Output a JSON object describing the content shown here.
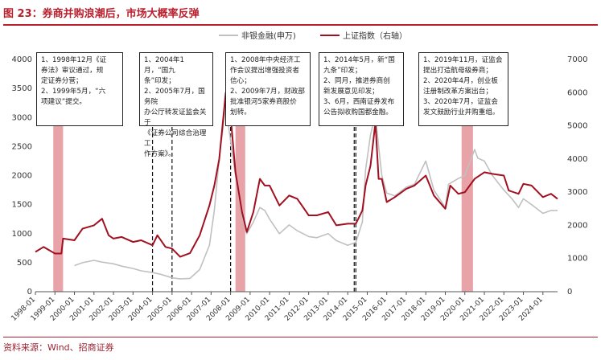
{
  "title": "图 23：券商并购浪潮后，市场大概率反弹",
  "source": "资料来源：Wind、招商证券",
  "chart_data": {
    "type": "line",
    "xlabel": "",
    "ylabel_left": "",
    "ylabel_right": "",
    "left_ylim": [
      0,
      4000
    ],
    "left_ticks": [
      0,
      500,
      1000,
      1500,
      2000,
      2500,
      3000,
      3500,
      4000
    ],
    "right_ylim": [
      0,
      7000
    ],
    "right_ticks": [
      0,
      1000,
      2000,
      3000,
      4000,
      5000,
      6000,
      7000
    ],
    "xlim": [
      "1998-01",
      "2024-10"
    ],
    "x_ticks": [
      "1998-01",
      "1999-01",
      "2000-01",
      "2001-01",
      "2002-01",
      "2003-01",
      "2004-01",
      "2005-01",
      "2006-01",
      "2007-01",
      "2008-01",
      "2009-01",
      "2010-01",
      "2011-01",
      "2012-01",
      "2013-01",
      "2014-01",
      "2015-01",
      "2016-01",
      "2017-01",
      "2018-01",
      "2019-01",
      "2020-01",
      "2021-01",
      "2022-01",
      "2023-01",
      "2024-01"
    ],
    "legend": "top-right",
    "grid": false,
    "series": [
      {
        "name": "非银金融(申万)",
        "axis": "left",
        "color": "#c0c0c0",
        "x": [
          "2000-01",
          "2000-06",
          "2001-01",
          "2001-06",
          "2002-01",
          "2002-06",
          "2003-01",
          "2003-06",
          "2004-01",
          "2004-06",
          "2005-01",
          "2005-06",
          "2005-12",
          "2006-06",
          "2006-12",
          "2007-03",
          "2007-06",
          "2007-10",
          "2008-01",
          "2008-04",
          "2008-08",
          "2008-11",
          "2009-03",
          "2009-07",
          "2009-10",
          "2010-01",
          "2010-07",
          "2011-01",
          "2011-06",
          "2012-01",
          "2012-06",
          "2013-01",
          "2013-06",
          "2014-01",
          "2014-06",
          "2014-10",
          "2014-12",
          "2015-03",
          "2015-06",
          "2015-08",
          "2015-10",
          "2016-01",
          "2016-06",
          "2017-01",
          "2017-06",
          "2018-01",
          "2018-06",
          "2019-01",
          "2019-03",
          "2019-09",
          "2020-01",
          "2020-07",
          "2020-09",
          "2021-01",
          "2021-06",
          "2022-01",
          "2022-06",
          "2022-10",
          "2023-01",
          "2023-06",
          "2024-01",
          "2024-06",
          "2024-10"
        ],
        "values": [
          450,
          500,
          540,
          510,
          480,
          440,
          400,
          360,
          330,
          300,
          240,
          220,
          230,
          380,
          800,
          1400,
          2300,
          3200,
          2600,
          2000,
          1300,
          1000,
          1200,
          1450,
          1400,
          1250,
          1000,
          1150,
          1050,
          950,
          930,
          1000,
          880,
          800,
          850,
          1200,
          2100,
          2700,
          3050,
          2500,
          2000,
          1700,
          1650,
          1800,
          1850,
          2250,
          1750,
          1450,
          1850,
          1950,
          2000,
          2450,
          2300,
          2250,
          2000,
          1750,
          1600,
          1450,
          1600,
          1500,
          1350,
          1400,
          1400
        ]
      },
      {
        "name": "上证指数（右轴）",
        "axis": "right",
        "color": "#a01020",
        "x": [
          "1998-01",
          "1998-06",
          "1999-01",
          "1999-05",
          "1999-06",
          "2000-01",
          "2000-06",
          "2001-01",
          "2001-06",
          "2001-10",
          "2002-01",
          "2002-06",
          "2003-01",
          "2003-06",
          "2004-01",
          "2004-04",
          "2004-09",
          "2005-01",
          "2005-06",
          "2005-12",
          "2006-06",
          "2006-12",
          "2007-03",
          "2007-06",
          "2007-10",
          "2008-01",
          "2008-04",
          "2008-08",
          "2008-11",
          "2009-03",
          "2009-07",
          "2009-10",
          "2010-01",
          "2010-07",
          "2011-01",
          "2011-06",
          "2012-01",
          "2012-06",
          "2013-01",
          "2013-06",
          "2014-01",
          "2014-06",
          "2014-10",
          "2014-12",
          "2015-03",
          "2015-06",
          "2015-08",
          "2015-10",
          "2016-01",
          "2016-06",
          "2017-01",
          "2017-06",
          "2018-01",
          "2018-06",
          "2019-01",
          "2019-04",
          "2019-09",
          "2020-01",
          "2020-07",
          "2021-01",
          "2021-06",
          "2022-01",
          "2022-04",
          "2022-10",
          "2023-01",
          "2023-06",
          "2024-01",
          "2024-06",
          "2024-10"
        ],
        "values": [
          1200,
          1350,
          1150,
          1150,
          1600,
          1550,
          1900,
          2000,
          2200,
          1700,
          1600,
          1650,
          1500,
          1550,
          1400,
          1700,
          1350,
          1300,
          1050,
          1160,
          1700,
          2600,
          3200,
          4000,
          6000,
          5300,
          3600,
          2400,
          1800,
          2400,
          3400,
          3200,
          3200,
          2600,
          2900,
          2800,
          2300,
          2300,
          2400,
          2000,
          2050,
          2050,
          2450,
          3200,
          3800,
          5100,
          3400,
          3400,
          2700,
          2850,
          3100,
          3200,
          3500,
          2900,
          2500,
          3200,
          2950,
          3000,
          3400,
          3600,
          3550,
          3500,
          3050,
          2950,
          3250,
          3200,
          2850,
          2950,
          2800
        ]
      }
    ],
    "shaded_periods": [
      {
        "from": "1998-12",
        "to": "1999-06"
      },
      {
        "from": "2008-04",
        "to": "2008-10"
      },
      {
        "from": "2019-11",
        "to": "2020-06"
      }
    ],
    "event_lines": [
      "2004-01",
      "2005-01",
      "2008-01",
      "2014-05",
      "2014-06"
    ],
    "annotations": [
      {
        "lines": [
          "1、1998年12月《证",
          "券法》审议通过，规",
          "定证券分营；",
          "2、1999年5月，“六",
          "项建议”提交。"
        ]
      },
      {
        "lines": [
          "1、2004年1月，“国九",
          "条”印发；",
          "2、2005年7月，国务院",
          "办公厅转发证监会关于",
          "《证券公司综合治理工",
          "作方案》。"
        ]
      },
      {
        "lines": [
          "1、2008年中央经济工",
          "作会议提出增强投资者",
          "信心；",
          "2、2009年7月，财政部",
          "批准银河5家券商股价",
          "划转。"
        ]
      },
      {
        "lines": [
          "1、2014年5月，新“国",
          "九条”印发；",
          "2、同月，推进券商创",
          "新发展意见印发；",
          "3、6月，西南证券发布",
          "公告拟收购国都金融。"
        ]
      },
      {
        "lines": [
          "1、2019年11月，证监会",
          "提出打造航母级券商；",
          "2、2020年4月，创业板",
          "注册制改革方案出台；",
          "3、2020年7月，证监会",
          "发文鼓励行业并购重组。"
        ]
      }
    ]
  }
}
